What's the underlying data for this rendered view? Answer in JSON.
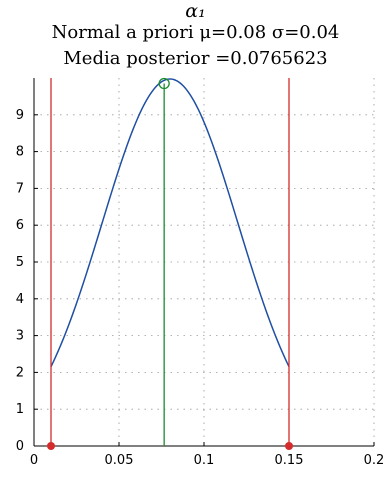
{
  "titles": {
    "line1": "α₁",
    "line2": "Normal a priori   μ=0.08  σ=0.04",
    "line3": "Media posterior =0.0765623"
  },
  "chart_data": {
    "type": "line",
    "title": "α₁ — Normal a priori μ=0.08 σ=0.04 — Media posterior =0.0765623",
    "xlabel": "",
    "ylabel": "",
    "xlim": [
      0,
      0.2
    ],
    "ylim": [
      0,
      10
    ],
    "xticks": [
      "0",
      "0.05",
      "0.1",
      "0.15",
      "0.2"
    ],
    "yticks": [
      "0",
      "1",
      "2",
      "3",
      "4",
      "5",
      "6",
      "7",
      "8",
      "9"
    ],
    "grid": true,
    "series": [
      {
        "kind": "normal-density-curve",
        "color": "#1f4fa3",
        "mu": 0.08,
        "sigma": 0.04,
        "x_from": 0.01,
        "x_to": 0.15,
        "peak_x": 0.08,
        "peak_y": 9.97
      },
      {
        "kind": "vertical-line",
        "color": "#d62b2b",
        "x": 0.01,
        "y_from": 0,
        "y_to": 10,
        "marker": "filled-dot-at-zero"
      },
      {
        "kind": "vertical-line",
        "color": "#d62b2b",
        "x": 0.15,
        "y_from": 0,
        "y_to": 10,
        "marker": "filled-dot-at-zero"
      },
      {
        "kind": "vertical-line",
        "color": "#1a8c2e",
        "x": 0.0765623,
        "y_from": 0,
        "y_to": 9.85,
        "marker": "open-circle-at-top"
      }
    ]
  }
}
